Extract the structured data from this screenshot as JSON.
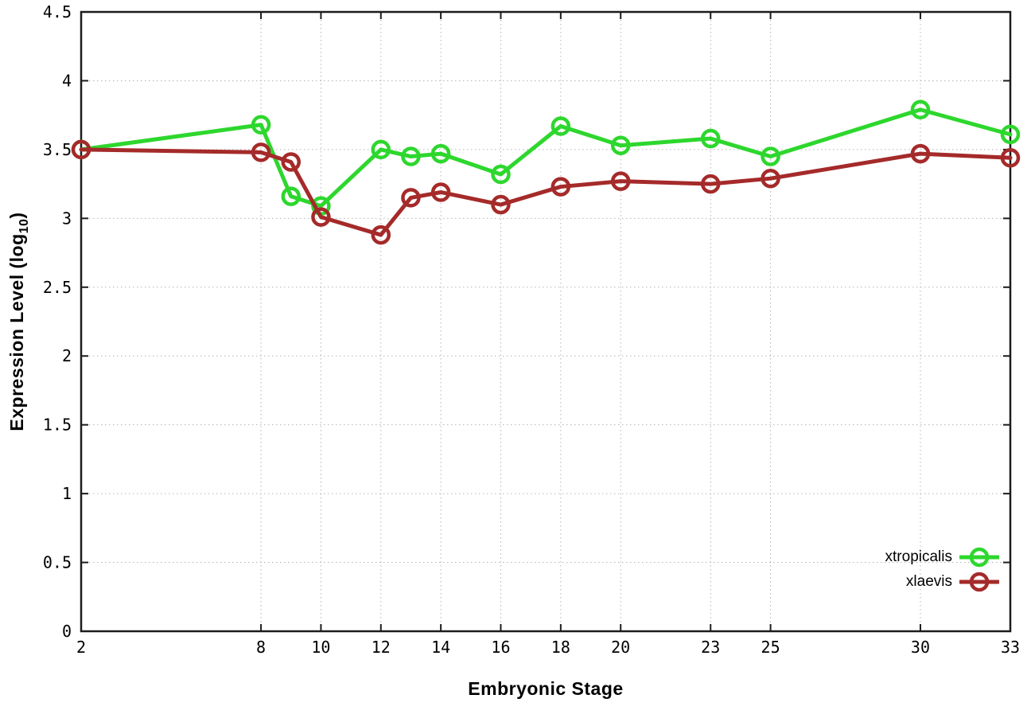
{
  "chart_data": {
    "type": "line",
    "title": "",
    "xlabel": "Embryonic Stage",
    "ylabel": {
      "prefix": "Expression Level (log",
      "sub": "10",
      "suffix": ")"
    },
    "xlim": [
      2,
      33
    ],
    "ylim": [
      0,
      4.5
    ],
    "grid": true,
    "legend_position": "bottom-right-inside",
    "x": [
      2,
      8,
      9,
      10,
      12,
      13,
      14,
      16,
      18,
      20,
      23,
      25,
      30,
      33
    ],
    "xticks": [
      {
        "value": 2,
        "label": "2"
      },
      {
        "value": 8,
        "label": "8"
      },
      {
        "value": 10,
        "label": "10"
      },
      {
        "value": 12,
        "label": "12"
      },
      {
        "value": 14,
        "label": "14"
      },
      {
        "value": 16,
        "label": "16"
      },
      {
        "value": 18,
        "label": "18"
      },
      {
        "value": 20,
        "label": "20"
      },
      {
        "value": 23,
        "label": "23"
      },
      {
        "value": 25,
        "label": "25"
      },
      {
        "value": 30,
        "label": "30"
      },
      {
        "value": 33,
        "label": "33"
      }
    ],
    "yticks": [
      {
        "value": 0,
        "label": "0"
      },
      {
        "value": 0.5,
        "label": "0.5"
      },
      {
        "value": 1,
        "label": "1"
      },
      {
        "value": 1.5,
        "label": "1.5"
      },
      {
        "value": 2,
        "label": "2"
      },
      {
        "value": 2.5,
        "label": "2.5"
      },
      {
        "value": 3,
        "label": "3"
      },
      {
        "value": 3.5,
        "label": "3.5"
      },
      {
        "value": 4,
        "label": "4"
      },
      {
        "value": 4.5,
        "label": "4.5"
      }
    ],
    "series": [
      {
        "name": "xtropicalis",
        "color": "#2dd72d",
        "values": [
          3.5,
          3.68,
          3.16,
          3.09,
          3.5,
          3.45,
          3.47,
          3.32,
          3.67,
          3.53,
          3.58,
          3.45,
          3.79,
          3.61
        ]
      },
      {
        "name": "xlaevis",
        "color": "#a52a2a",
        "values": [
          3.5,
          3.48,
          3.41,
          3.01,
          2.88,
          3.15,
          3.19,
          3.1,
          3.23,
          3.27,
          3.25,
          3.29,
          3.47,
          3.44
        ]
      }
    ]
  }
}
